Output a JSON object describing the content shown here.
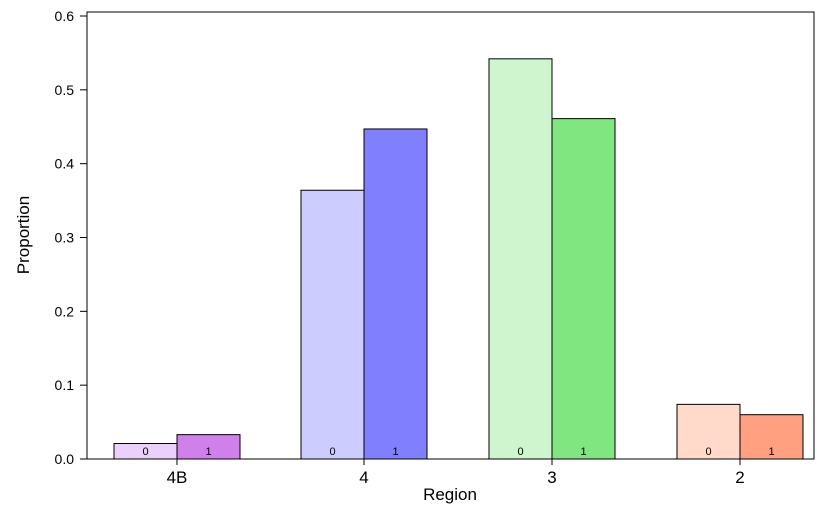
{
  "chart_data": {
    "type": "bar",
    "title": "",
    "xlabel": "Region",
    "ylabel": "Proportion",
    "ylim": [
      0,
      0.6
    ],
    "yticks": [
      "0.0",
      "0.1",
      "0.2",
      "0.3",
      "0.4",
      "0.5",
      "0.6"
    ],
    "categories": [
      "4B",
      "4",
      "3",
      "2"
    ],
    "series": [
      {
        "values": [
          0.021,
          0.364,
          0.542,
          0.074
        ]
      },
      {
        "values": [
          0.033,
          0.447,
          0.461,
          0.06
        ]
      }
    ],
    "bar_labels": [
      "0",
      "1"
    ],
    "grid": false,
    "legend": "none",
    "colors": [
      [
        "#EAD0FA",
        "#D080EA"
      ],
      [
        "#CCCCFF",
        "#8080FF"
      ],
      [
        "#CFF5CF",
        "#80E680"
      ],
      [
        "#FFD9C9",
        "#FFA080"
      ]
    ]
  }
}
